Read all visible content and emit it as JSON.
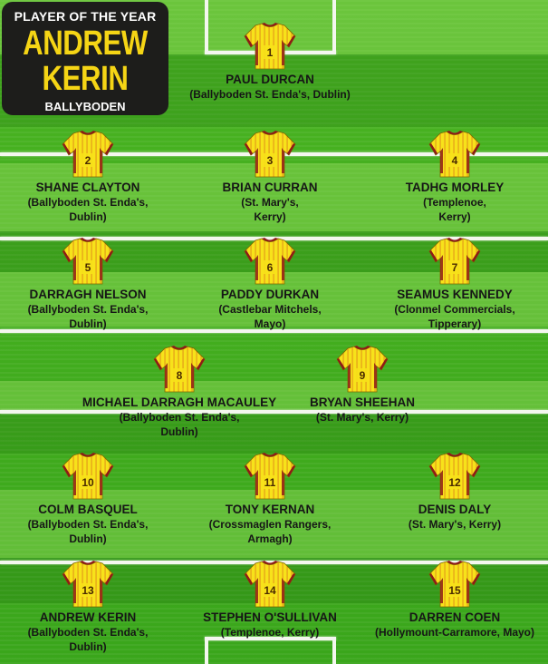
{
  "header": {
    "title": "PLAYER OF THE YEAR",
    "name_first": "ANDREW",
    "name_last": "KERIN",
    "club": "BALLYBODEN"
  },
  "colors": {
    "pitch": "#3aa61b",
    "shirt": "#f7e21a",
    "trim": "#8e1b17",
    "panel": "#1d1d1b",
    "accent": "#f5d515"
  },
  "players": [
    {
      "number": "1",
      "name": "PAUL DURCAN",
      "club1": "(Ballyboden St. Enda's, Dublin)",
      "club2": ""
    },
    {
      "number": "2",
      "name": "SHANE CLAYTON",
      "club1": "(Ballyboden St. Enda's,",
      "club2": "Dublin)"
    },
    {
      "number": "3",
      "name": "BRIAN CURRAN",
      "club1": "(St. Mary's,",
      "club2": "Kerry)"
    },
    {
      "number": "4",
      "name": "TADHG MORLEY",
      "club1": "(Templenoe,",
      "club2": "Kerry)"
    },
    {
      "number": "5",
      "name": "DARRAGH NELSON",
      "club1": "(Ballyboden St. Enda's,",
      "club2": "Dublin)"
    },
    {
      "number": "6",
      "name": "PADDY DURKAN",
      "club1": "(Castlebar Mitchels,",
      "club2": "Mayo)"
    },
    {
      "number": "7",
      "name": "SEAMUS KENNEDY",
      "club1": "(Clonmel Commercials,",
      "club2": "Tipperary)"
    },
    {
      "number": "8",
      "name": "MICHAEL DARRAGH MACAULEY",
      "club1": "(Ballyboden St. Enda's,",
      "club2": "Dublin)"
    },
    {
      "number": "9",
      "name": "BRYAN SHEEHAN",
      "club1": "(St. Mary's, Kerry)",
      "club2": ""
    },
    {
      "number": "10",
      "name": "COLM BASQUEL",
      "club1": "(Ballyboden St. Enda's,",
      "club2": "Dublin)"
    },
    {
      "number": "11",
      "name": "TONY KERNAN",
      "club1": "(Crossmaglen Rangers,",
      "club2": "Armagh)"
    },
    {
      "number": "12",
      "name": "DENIS DALY",
      "club1": "(St. Mary's, Kerry)",
      "club2": ""
    },
    {
      "number": "13",
      "name": "ANDREW KERIN",
      "club1": "(Ballyboden St. Enda's,",
      "club2": "Dublin)"
    },
    {
      "number": "14",
      "name": "STEPHEN O'SULLIVAN",
      "club1": "(Templenoe, Kerry)",
      "club2": ""
    },
    {
      "number": "15",
      "name": "DARREN COEN",
      "club1": "(Hollymount-Carramore, Mayo)",
      "club2": ""
    }
  ]
}
